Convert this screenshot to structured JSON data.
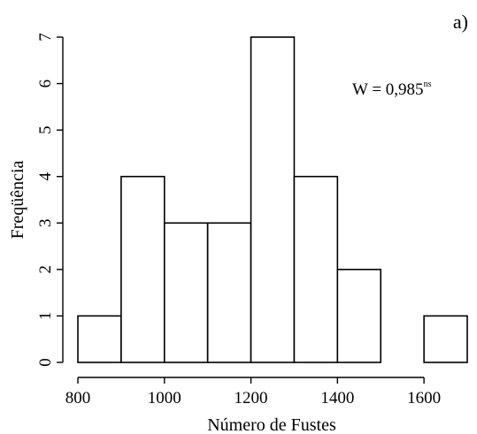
{
  "chart_data": {
    "type": "bar",
    "panel_label": "a)",
    "xlabel": "Número de Fustes",
    "ylabel": "Freqüência",
    "annotation": {
      "text": "W = 0,985",
      "superscript": "ns"
    },
    "bins": [
      {
        "x0": 800,
        "x1": 900,
        "count": 1
      },
      {
        "x0": 900,
        "x1": 1000,
        "count": 4
      },
      {
        "x0": 1000,
        "x1": 1100,
        "count": 3
      },
      {
        "x0": 1100,
        "x1": 1200,
        "count": 3
      },
      {
        "x0": 1200,
        "x1": 1300,
        "count": 7
      },
      {
        "x0": 1300,
        "x1": 1400,
        "count": 4
      },
      {
        "x0": 1400,
        "x1": 1500,
        "count": 2
      },
      {
        "x0": 1500,
        "x1": 1600,
        "count": 0
      },
      {
        "x0": 1600,
        "x1": 1700,
        "count": 1
      }
    ],
    "xticks": [
      800,
      1000,
      1200,
      1400,
      1600
    ],
    "yticks": [
      0,
      1,
      2,
      3,
      4,
      5,
      6,
      7
    ],
    "xlim": [
      800,
      1700
    ],
    "ylim": [
      0,
      7
    ],
    "grid": false
  }
}
